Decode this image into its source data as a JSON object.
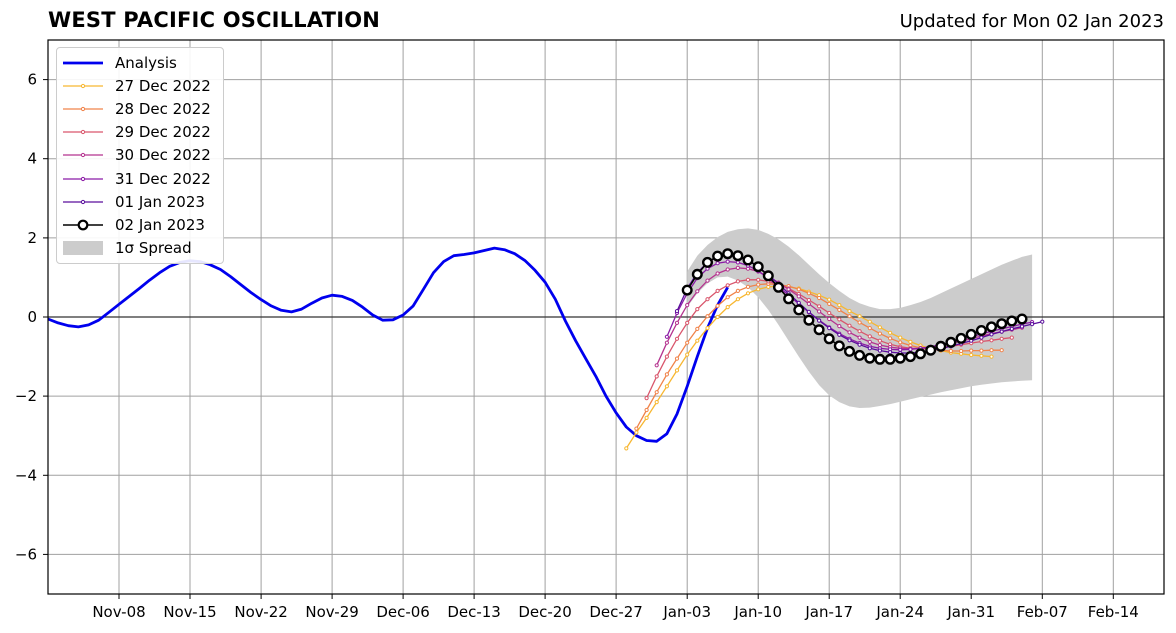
{
  "title": "WEST PACIFIC OSCILLATION",
  "subtitle": "Updated for Mon 02 Jan 2023",
  "chart_data": {
    "type": "line",
    "start_date": "2022-11-01",
    "ylim": [
      -7,
      7
    ],
    "yticks": [
      6,
      4,
      2,
      0,
      -2,
      -4,
      -6
    ],
    "ytick_labels": [
      "6",
      "4",
      "2",
      "0",
      "−2",
      "−4",
      "−6"
    ],
    "xlim": [
      "2022-11-01",
      "2023-02-19"
    ],
    "xticks": [
      {
        "date": "2022-11-08",
        "label": "Nov-08"
      },
      {
        "date": "2022-11-15",
        "label": "Nov-15"
      },
      {
        "date": "2022-11-22",
        "label": "Nov-22"
      },
      {
        "date": "2022-11-29",
        "label": "Nov-29"
      },
      {
        "date": "2022-12-06",
        "label": "Dec-06"
      },
      {
        "date": "2022-12-13",
        "label": "Dec-13"
      },
      {
        "date": "2022-12-20",
        "label": "Dec-20"
      },
      {
        "date": "2022-12-27",
        "label": "Dec-27"
      },
      {
        "date": "2023-01-03",
        "label": "Jan-03"
      },
      {
        "date": "2023-01-10",
        "label": "Jan-10"
      },
      {
        "date": "2023-01-17",
        "label": "Jan-17"
      },
      {
        "date": "2023-01-24",
        "label": "Jan-24"
      },
      {
        "date": "2023-01-31",
        "label": "Jan-31"
      },
      {
        "date": "2023-02-07",
        "label": "Feb-07"
      },
      {
        "date": "2023-02-14",
        "label": "Feb-14"
      }
    ],
    "grid": true,
    "legend_position": "top-left",
    "analysis": {
      "name": "Analysis",
      "color": "#0000ee",
      "values": [
        -0.05,
        -0.15,
        -0.22,
        -0.25,
        -0.2,
        -0.08,
        0.12,
        0.32,
        0.52,
        0.72,
        0.93,
        1.12,
        1.28,
        1.38,
        1.42,
        1.4,
        1.32,
        1.2,
        1.02,
        0.82,
        0.62,
        0.44,
        0.28,
        0.17,
        0.13,
        0.2,
        0.35,
        0.48,
        0.55,
        0.52,
        0.42,
        0.25,
        0.05,
        -0.08,
        -0.07,
        0.05,
        0.28,
        0.7,
        1.12,
        1.4,
        1.55,
        1.58,
        1.62,
        1.68,
        1.74,
        1.7,
        1.6,
        1.43,
        1.18,
        0.88,
        0.45,
        -0.1,
        -0.6,
        -1.05,
        -1.5,
        -2.0,
        -2.42,
        -2.78,
        -3.0,
        -3.12,
        -3.14,
        -2.95,
        -2.45,
        -1.75,
        -1.0,
        -0.28,
        0.3,
        0.75
      ]
    },
    "forecasts": [
      {
        "name": "27 Dec 2022",
        "color": "#f7b731",
        "start_day": 57,
        "values": [
          -3.32,
          -2.92,
          -2.55,
          -2.15,
          -1.75,
          -1.35,
          -0.95,
          -0.6,
          -0.28,
          0.0,
          0.25,
          0.45,
          0.6,
          0.7,
          0.76,
          0.78,
          0.76,
          0.72,
          0.64,
          0.55,
          0.44,
          0.3,
          0.15,
          0.02,
          -0.12,
          -0.26,
          -0.4,
          -0.52,
          -0.63,
          -0.72,
          -0.8,
          -0.85,
          -0.9,
          -0.93,
          -0.96,
          -0.98,
          -1.0
        ]
      },
      {
        "name": "28 Dec 2022",
        "color": "#f0834a",
        "start_day": 58,
        "values": [
          -2.82,
          -2.35,
          -1.9,
          -1.45,
          -1.05,
          -0.65,
          -0.3,
          0.02,
          0.28,
          0.5,
          0.66,
          0.76,
          0.82,
          0.84,
          0.82,
          0.78,
          0.7,
          0.6,
          0.48,
          0.33,
          0.18,
          0.02,
          -0.14,
          -0.28,
          -0.42,
          -0.54,
          -0.64,
          -0.72,
          -0.78,
          -0.82,
          -0.84,
          -0.86,
          -0.86,
          -0.85,
          -0.85,
          -0.84,
          -0.84
        ]
      },
      {
        "name": "29 Dec 2022",
        "color": "#d9566c",
        "start_day": 59,
        "values": [
          -2.05,
          -1.5,
          -1.0,
          -0.55,
          -0.15,
          0.2,
          0.45,
          0.66,
          0.8,
          0.9,
          0.94,
          0.94,
          0.9,
          0.82,
          0.72,
          0.58,
          0.43,
          0.27,
          0.1,
          -0.06,
          -0.22,
          -0.36,
          -0.49,
          -0.6,
          -0.69,
          -0.75,
          -0.79,
          -0.8,
          -0.79,
          -0.77,
          -0.74,
          -0.7,
          -0.66,
          -0.62,
          -0.59,
          -0.55,
          -0.52
        ]
      },
      {
        "name": "30 Dec 2022",
        "color": "#b5338f",
        "start_day": 60,
        "values": [
          -1.22,
          -0.65,
          -0.15,
          0.3,
          0.65,
          0.92,
          1.1,
          1.2,
          1.24,
          1.22,
          1.15,
          1.02,
          0.87,
          0.7,
          0.52,
          0.33,
          0.14,
          -0.05,
          -0.23,
          -0.39,
          -0.52,
          -0.63,
          -0.71,
          -0.76,
          -0.79,
          -0.8,
          -0.79,
          -0.76,
          -0.72,
          -0.67,
          -0.61,
          -0.55,
          -0.48,
          -0.42,
          -0.37,
          -0.32,
          -0.27
        ]
      },
      {
        "name": "31 Dec 2022",
        "color": "#8b1ba6",
        "start_day": 61,
        "values": [
          -0.5,
          0.1,
          0.6,
          0.98,
          1.22,
          1.36,
          1.4,
          1.38,
          1.3,
          1.16,
          0.98,
          0.77,
          0.55,
          0.33,
          0.12,
          -0.08,
          -0.26,
          -0.42,
          -0.55,
          -0.66,
          -0.74,
          -0.79,
          -0.82,
          -0.83,
          -0.82,
          -0.79,
          -0.75,
          -0.7,
          -0.64,
          -0.57,
          -0.5,
          -0.43,
          -0.36,
          -0.3,
          -0.24,
          -0.18,
          -0.13
        ]
      },
      {
        "name": "01 Jan 2023",
        "color": "#5a0f9c",
        "start_day": 62,
        "values": [
          0.15,
          0.72,
          1.12,
          1.38,
          1.52,
          1.56,
          1.52,
          1.42,
          1.27,
          1.07,
          0.84,
          0.6,
          0.36,
          0.13,
          -0.09,
          -0.28,
          -0.45,
          -0.59,
          -0.7,
          -0.79,
          -0.85,
          -0.89,
          -0.91,
          -0.91,
          -0.89,
          -0.85,
          -0.8,
          -0.74,
          -0.67,
          -0.6,
          -0.52,
          -0.44,
          -0.37,
          -0.3,
          -0.24,
          -0.18,
          -0.12
        ]
      },
      {
        "name": "02 Jan 2023",
        "color": "#000000",
        "start_day": 63,
        "values": [
          0.68,
          1.08,
          1.38,
          1.54,
          1.6,
          1.55,
          1.44,
          1.27,
          1.04,
          0.75,
          0.46,
          0.18,
          -0.08,
          -0.32,
          -0.55,
          -0.73,
          -0.87,
          -0.97,
          -1.04,
          -1.07,
          -1.07,
          -1.04,
          -1.0,
          -0.93,
          -0.84,
          -0.74,
          -0.64,
          -0.54,
          -0.44,
          -0.34,
          -0.25,
          -0.17,
          -0.1,
          -0.05
        ]
      }
    ],
    "spread": {
      "name": "1σ Spread",
      "color": "#cccccc",
      "start_day": 63,
      "upper": [
        1.15,
        1.55,
        1.82,
        2.02,
        2.15,
        2.22,
        2.24,
        2.2,
        2.1,
        1.96,
        1.78,
        1.56,
        1.32,
        1.08,
        0.86,
        0.66,
        0.48,
        0.35,
        0.26,
        0.2,
        0.2,
        0.23,
        0.3,
        0.38,
        0.48,
        0.6,
        0.72,
        0.84,
        0.96,
        1.08,
        1.2,
        1.32,
        1.42,
        1.52,
        1.58
      ],
      "lower": [
        0.25,
        0.6,
        0.85,
        1.0,
        1.02,
        0.92,
        0.75,
        0.5,
        0.18,
        -0.2,
        -0.6,
        -1.0,
        -1.38,
        -1.72,
        -1.98,
        -2.15,
        -2.26,
        -2.3,
        -2.29,
        -2.25,
        -2.2,
        -2.14,
        -2.08,
        -2.02,
        -1.96,
        -1.9,
        -1.85,
        -1.8,
        -1.75,
        -1.71,
        -1.68,
        -1.65,
        -1.63,
        -1.61,
        -1.6
      ]
    }
  }
}
